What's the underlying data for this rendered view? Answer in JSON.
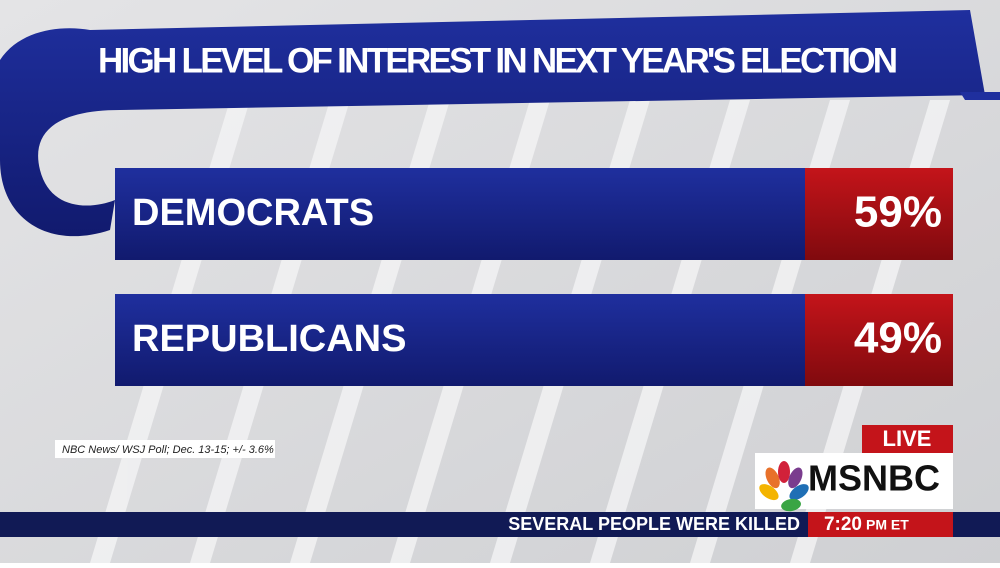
{
  "header": {
    "title": "HIGH LEVEL OF INTEREST IN NEXT YEAR'S ELECTION"
  },
  "rows": [
    {
      "label": "DEMOCRATS",
      "value": "59%"
    },
    {
      "label": "REPUBLICANS",
      "value": "49%"
    }
  ],
  "source": "NBC News/ WSJ Poll; Dec. 13-15; +/- 3.6%",
  "bug": {
    "live": "LIVE",
    "network": "MSNBC"
  },
  "ticker": {
    "headline": "SEVERAL PEOPLE WERE KILLED",
    "time": "7:20",
    "zone": "PM ET"
  }
}
